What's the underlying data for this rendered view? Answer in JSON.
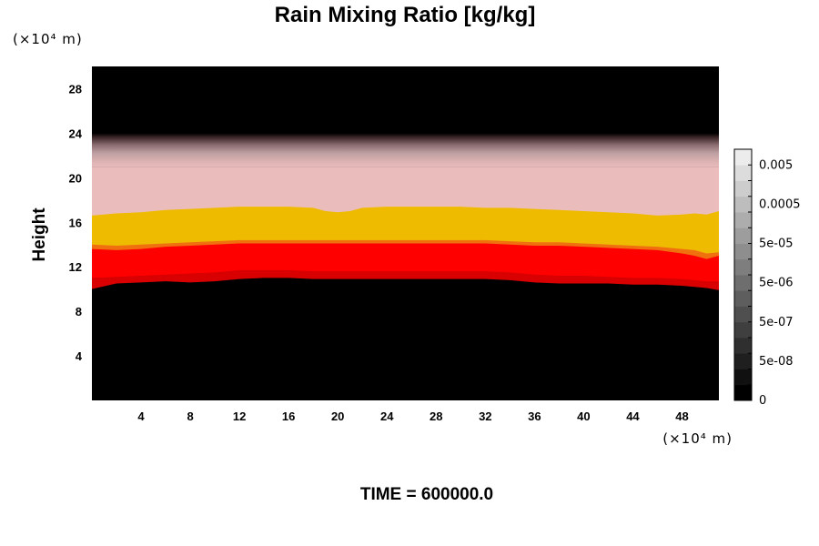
{
  "chart_data": {
    "type": "heatmap",
    "title": "Rain Mixing Ratio [kg/kg]",
    "ylabel": "Height",
    "x_unit": "(×10⁴ m)",
    "y_unit": "(×10⁴ m)",
    "footer": "TIME = 600000.0",
    "xlim": [
      0,
      51
    ],
    "ylim": [
      0,
      30
    ],
    "x_ticks": [
      4,
      8,
      12,
      16,
      20,
      24,
      28,
      32,
      36,
      40,
      44,
      48
    ],
    "y_ticks": [
      4,
      8,
      12,
      16,
      20,
      24,
      28
    ],
    "colorbar": {
      "tick_labels": [
        "0",
        "5e-08",
        "5e-07",
        "5e-06",
        "5e-05",
        "0.0005",
        "0.005"
      ],
      "levels": 16
    },
    "bands": [
      {
        "name": "upper-fade",
        "bottom": 21,
        "top": 24,
        "color_top": "#000000",
        "color_bottom": "#e4b4b4"
      },
      {
        "name": "pink",
        "top": 21,
        "color": "#ebbcbc"
      },
      {
        "name": "yellow",
        "color": "#eebb00"
      },
      {
        "name": "orange-edge",
        "color": "#f07010"
      },
      {
        "name": "red",
        "color": "#ff0000"
      },
      {
        "name": "dark-red",
        "color": "#d80000"
      },
      {
        "name": "bottom",
        "color": "#000000"
      }
    ],
    "boundaries": {
      "x": [
        0,
        2,
        4,
        6,
        8,
        10,
        12,
        14,
        16,
        18,
        19,
        20,
        21,
        22,
        24,
        26,
        28,
        30,
        32,
        34,
        36,
        38,
        40,
        42,
        44,
        46,
        48,
        49,
        50,
        51
      ],
      "yellow_top": [
        16.6,
        16.8,
        16.9,
        17.1,
        17.2,
        17.3,
        17.4,
        17.4,
        17.4,
        17.3,
        17.0,
        16.9,
        17.0,
        17.3,
        17.4,
        17.4,
        17.4,
        17.4,
        17.3,
        17.3,
        17.2,
        17.1,
        17.0,
        16.9,
        16.8,
        16.6,
        16.7,
        16.8,
        16.7,
        17.0
      ],
      "orange_top": [
        14.0,
        13.9,
        14.0,
        14.1,
        14.2,
        14.3,
        14.4,
        14.4,
        14.4,
        14.4,
        14.4,
        14.4,
        14.4,
        14.4,
        14.4,
        14.4,
        14.4,
        14.4,
        14.4,
        14.3,
        14.2,
        14.2,
        14.1,
        14.0,
        13.9,
        13.8,
        13.6,
        13.5,
        13.2,
        13.3
      ],
      "red_top": [
        13.6,
        13.5,
        13.6,
        13.8,
        13.9,
        14.0,
        14.1,
        14.1,
        14.1,
        14.1,
        14.1,
        14.1,
        14.1,
        14.1,
        14.1,
        14.1,
        14.1,
        14.1,
        14.1,
        14.0,
        13.9,
        13.9,
        13.8,
        13.7,
        13.6,
        13.5,
        13.2,
        13.0,
        12.7,
        13.0
      ],
      "darkred_top": [
        11.0,
        11.1,
        11.2,
        11.3,
        11.4,
        11.5,
        11.7,
        11.7,
        11.7,
        11.6,
        11.6,
        11.6,
        11.6,
        11.6,
        11.6,
        11.6,
        11.6,
        11.6,
        11.6,
        11.5,
        11.3,
        11.2,
        11.2,
        11.1,
        11.0,
        11.0,
        10.9,
        10.8,
        10.7,
        10.7
      ],
      "black_top": [
        10.0,
        10.5,
        10.6,
        10.7,
        10.6,
        10.7,
        10.9,
        11.0,
        11.0,
        10.9,
        10.9,
        10.9,
        10.9,
        10.9,
        10.9,
        10.9,
        10.9,
        10.9,
        10.9,
        10.8,
        10.6,
        10.5,
        10.5,
        10.5,
        10.4,
        10.4,
        10.3,
        10.2,
        10.1,
        9.9
      ]
    }
  }
}
